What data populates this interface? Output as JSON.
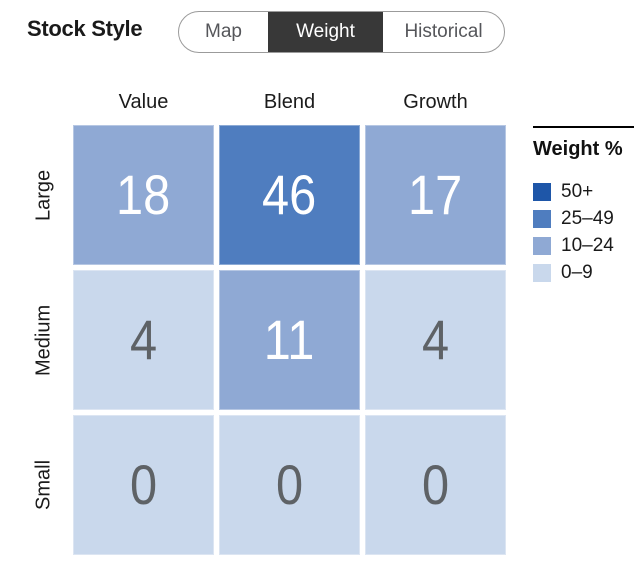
{
  "header": {
    "title": "Stock Style",
    "tabs": [
      {
        "label": "Map",
        "selected": false
      },
      {
        "label": "Weight",
        "selected": true
      },
      {
        "label": "Historical",
        "selected": false
      }
    ]
  },
  "chart_data": {
    "type": "heatmap",
    "title": "Stock Style Weight",
    "columns": [
      "Value",
      "Blend",
      "Growth"
    ],
    "rows": [
      "Large",
      "Medium",
      "Small"
    ],
    "values": [
      [
        18,
        46,
        17
      ],
      [
        4,
        11,
        4
      ],
      [
        0,
        0,
        0
      ]
    ],
    "legend": {
      "title": "Weight %",
      "position": "right",
      "bins": [
        {
          "label": "50+",
          "min": 50,
          "color": "#1e56a8"
        },
        {
          "label": "25–49",
          "min": 25,
          "color": "#4f7dbf"
        },
        {
          "label": "10–24",
          "min": 10,
          "color": "#8fa9d4"
        },
        {
          "label": "0–9",
          "min": 0,
          "color": "#c9d8ec"
        }
      ]
    }
  },
  "colors": {
    "selected_tab_bg": "#383838",
    "selected_tab_text": "#ffffff",
    "unselected_tab_text": "#55565a",
    "cell_text_light": "#ffffff",
    "cell_text_dark": "#5e6266",
    "label_text": "#1b1b1b"
  }
}
